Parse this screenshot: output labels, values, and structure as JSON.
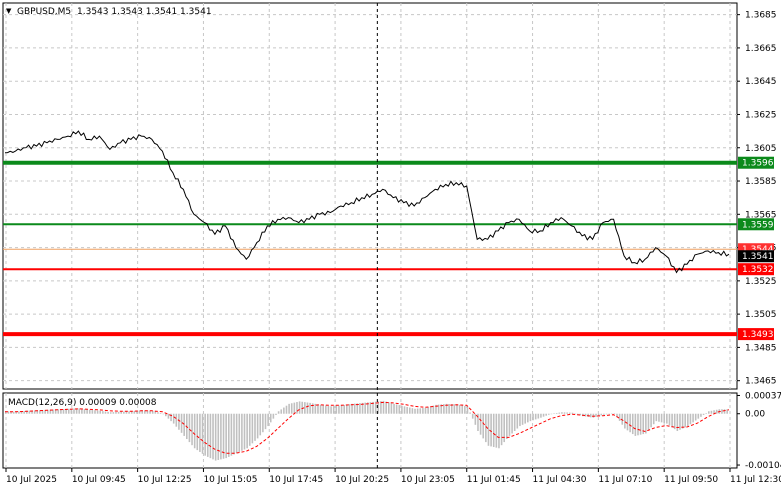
{
  "header": {
    "symbol": "GBPUSD,M5",
    "ohlc": "1.3543 1.3543 1.3541 1.3541"
  },
  "macd_label": "MACD(12,26,9) 0.00009 0.00008",
  "colors": {
    "background": "#ffffff",
    "grid": "#c8c8c8",
    "price_line": "#000000",
    "resistance_strong": "#0b8a1b",
    "resistance": "#0b8a1b",
    "support": "#ff0000",
    "support_strong": "#ff0000",
    "histogram": "#c0c0c0",
    "signal": "#ff0000",
    "current_price_bg": "#000000",
    "crosshair": "#000000"
  },
  "chart_data": [
    {
      "type": "line",
      "title": "GBPUSD,M5",
      "ylim": [
        1.346,
        1.3692
      ],
      "y_ticks": [
        "1.3685",
        "1.3665",
        "1.3645",
        "1.3625",
        "1.3605",
        "1.3585",
        "1.3565",
        "1.3545",
        "1.3525",
        "1.3505",
        "1.3485",
        "1.3465"
      ],
      "x_ticks": [
        "10 Jul 2025",
        "10 Jul 09:45",
        "10 Jul 12:25",
        "10 Jul 15:05",
        "10 Jul 17:45",
        "10 Jul 20:25",
        "10 Jul 23:05",
        "11 Jul 01:45",
        "11 Jul 04:30",
        "11 Jul 07:10",
        "11 Jul 09:50",
        "11 Jul 12:30"
      ],
      "series": [
        {
          "values": [
            1.3602,
            1.3603,
            1.3605,
            1.3606,
            1.3608,
            1.361,
            1.3612,
            1.3615,
            1.361,
            1.3612,
            1.3604,
            1.3608,
            1.361,
            1.3612,
            1.361,
            1.3603,
            1.359,
            1.358,
            1.3565,
            1.356,
            1.3553,
            1.3558,
            1.3545,
            1.3538,
            1.3548,
            1.3558,
            1.3562,
            1.3563,
            1.356,
            1.3562,
            1.3565,
            1.3566,
            1.357,
            1.3572,
            1.3575,
            1.3577,
            1.358,
            1.3575,
            1.3572,
            1.357,
            1.3575,
            1.358,
            1.3583,
            1.3584,
            1.3582,
            1.355,
            1.355,
            1.3555,
            1.356,
            1.3562,
            1.3555,
            1.3555,
            1.356,
            1.3563,
            1.3558,
            1.3552,
            1.355,
            1.356,
            1.3562,
            1.354,
            1.3536,
            1.3538,
            1.3545,
            1.354,
            1.353,
            1.3535,
            1.3541,
            1.3543,
            1.3542,
            1.3541
          ]
        },
        {
          "name": "support-resistance levels",
          "levels": [
            {
              "label": "1.3596",
              "value": 1.3596,
              "style": "strong",
              "color": "#0b8a1b"
            },
            {
              "label": "1.3559",
              "value": 1.3559,
              "style": "normal",
              "color": "#0b8a1b"
            },
            {
              "label": "1.3532",
              "value": 1.3532,
              "style": "normal",
              "color": "#ff0000"
            },
            {
              "label": "1.3493",
              "value": 1.3493,
              "style": "strong",
              "color": "#ff0000"
            }
          ]
        }
      ],
      "current_price": {
        "label": "1.3541",
        "value": 1.3541
      },
      "bid_line": {
        "label": "1.3544",
        "value": 1.3544
      },
      "crosshair_x_index": 0.51
    },
    {
      "type": "bar",
      "title": "MACD(12,26,9) 0.00009 0.00008",
      "ylim": [
        -0.0011,
        0.00042
      ],
      "y_ticks": [
        "0.00037",
        "0.00",
        "-0.00104"
      ],
      "series": [
        {
          "name": "histogram",
          "values": [
            5e-05,
            4e-05,
            6e-05,
            7e-05,
            8e-05,
            9e-05,
            0.0001,
            0.00011,
            8e-05,
            6e-05,
            3e-05,
            4e-05,
            5e-05,
            7e-05,
            6e-05,
            0.0,
            -0.0002,
            -0.00045,
            -0.0007,
            -0.00085,
            -0.00095,
            -0.0009,
            -0.0008,
            -0.0007,
            -0.0005,
            -0.00025,
            5e-05,
            0.0002,
            0.00025,
            0.00022,
            0.00018,
            0.00015,
            0.00017,
            0.0002,
            0.00022,
            0.00024,
            0.00026,
            0.0002,
            0.00015,
            0.0001,
            0.00012,
            0.00018,
            0.0002,
            0.00019,
            0.00015,
            -0.00035,
            -0.00065,
            -0.0007,
            -0.00045,
            -0.00025,
            -0.00015,
            -8e-05,
            0.0,
            3e-05,
            2e-05,
            -5e-05,
            -8e-05,
            -2e-05,
            1e-05,
            -0.0003,
            -0.00045,
            -0.0004,
            -0.00015,
            -0.0002,
            -0.00035,
            -0.00025,
            -0.0001,
            5e-05,
            9e-05,
            9e-05
          ]
        },
        {
          "name": "signal",
          "values": [
            4e-05,
            4e-05,
            5e-05,
            6e-05,
            7e-05,
            8e-05,
            9e-05,
            0.0001,
            9e-05,
            8e-05,
            6e-05,
            5e-05,
            5e-05,
            6e-05,
            6e-05,
            4e-05,
            -5e-05,
            -0.0002,
            -0.0004,
            -0.00058,
            -0.00072,
            -0.0008,
            -0.0008,
            -0.00076,
            -0.00066,
            -0.0005,
            -0.0003,
            -0.0001,
            8e-05,
            0.00016,
            0.00018,
            0.00017,
            0.00017,
            0.00018,
            0.00019,
            0.00021,
            0.00023,
            0.00022,
            0.00019,
            0.00015,
            0.00013,
            0.00015,
            0.00017,
            0.00018,
            0.00017,
            -5e-05,
            -0.0003,
            -0.00048,
            -0.00048,
            -0.0004,
            -0.0003,
            -0.0002,
            -0.0001,
            -4e-05,
            -1e-05,
            -3e-05,
            -5e-05,
            -4e-05,
            -2e-05,
            -0.00015,
            -0.0003,
            -0.00036,
            -0.00028,
            -0.00024,
            -0.00028,
            -0.00027,
            -0.00019,
            -6e-05,
            4e-05,
            8e-05
          ]
        }
      ]
    }
  ]
}
